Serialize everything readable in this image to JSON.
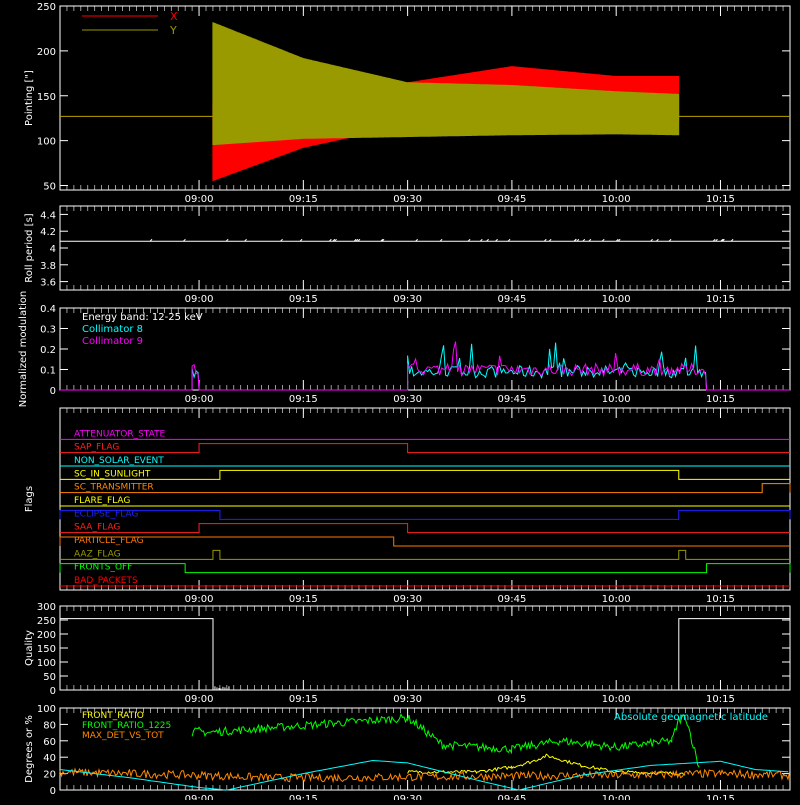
{
  "chart_data": [
    {
      "type": "line",
      "ylabel": "Pointing [\"]",
      "ylim": [
        45,
        250
      ],
      "y_ticks": [
        50,
        100,
        150,
        200,
        250
      ],
      "xlim": [
        "08:40",
        "10:25"
      ],
      "x_ticks": [
        "09:00",
        "09:15",
        "09:30",
        "09:45",
        "10:00",
        "10:15"
      ],
      "legend": "top-left",
      "baseline": 127,
      "active_range": [
        "09:02",
        "10:09"
      ],
      "series": [
        {
          "name": "X",
          "color": "#ff0000",
          "upper": {
            "x": [
              "09:02",
              "09:15",
              "09:30",
              "09:45",
              "10:00",
              "10:09"
            ],
            "y": [
              140,
              136,
              165,
              183,
              172,
              172
            ]
          },
          "lower": {
            "x": [
              "09:02",
              "09:15",
              "09:30",
              "09:45",
              "10:00",
              "10:09"
            ],
            "y": [
              55,
              92,
              117,
              118,
              120,
              122
            ]
          }
        },
        {
          "name": "Y",
          "color": "#999900",
          "upper": {
            "x": [
              "09:02",
              "09:15",
              "09:30",
              "09:45",
              "10:00",
              "10:09"
            ],
            "y": [
              232,
              192,
              165,
              162,
              155,
              152
            ]
          },
          "lower": {
            "x": [
              "09:02",
              "09:15",
              "09:30",
              "09:45",
              "10:00",
              "10:09"
            ],
            "y": [
              95,
              102,
              104,
              106,
              107,
              106
            ]
          }
        }
      ]
    },
    {
      "type": "line",
      "ylabel": "Roll period [s]",
      "ylim": [
        3.5,
        4.5
      ],
      "y_ticks": [
        3.6,
        3.8,
        4.0,
        4.2,
        4.4
      ],
      "xlim": [
        "08:40",
        "10:25"
      ],
      "x_ticks": [
        "09:00",
        "09:15",
        "09:30",
        "09:45",
        "10:00",
        "10:15"
      ],
      "series": [
        {
          "name": "",
          "color": "#ffffff",
          "x": [
            "08:40",
            "10:25"
          ],
          "y": [
            4.08,
            4.08
          ]
        }
      ]
    },
    {
      "type": "line",
      "ylabel": "Normalized modulation",
      "ylim": [
        0,
        0.4
      ],
      "y_ticks": [
        0.0,
        0.1,
        0.2,
        0.3,
        0.4
      ],
      "xlim": [
        "08:40",
        "10:25"
      ],
      "x_ticks": [
        "09:00",
        "09:15",
        "09:30",
        "09:45",
        "10:00",
        "10:15"
      ],
      "annotation": "Energy band: 12-25 keV",
      "legend": "top-left",
      "series": [
        {
          "name": "Collimator 8",
          "color": "#00ffff",
          "active": [
            [
              "08:59",
              "09:00"
            ],
            [
              "09:30",
              "10:13"
            ]
          ],
          "level": 0.08
        },
        {
          "name": "Collimator 9",
          "color": "#ff00ff",
          "active": [
            [
              "08:59",
              "09:00"
            ],
            [
              "09:30",
              "10:13"
            ]
          ],
          "level": 0.09
        }
      ]
    },
    {
      "type": "line",
      "ylabel": "Flags",
      "xlim": [
        "08:40",
        "10:25"
      ],
      "x_ticks": [
        "09:00",
        "09:15",
        "09:30",
        "09:45",
        "10:00",
        "10:15"
      ],
      "series": [
        {
          "name": "ATTENUATOR_STATE",
          "color": "#ff00ff",
          "high": []
        },
        {
          "name": "SAP_FLAG",
          "color": "#ff2020",
          "high": [
            [
              "09:00",
              "09:30"
            ]
          ]
        },
        {
          "name": "NON_SOLAR_EVENT",
          "color": "#00ffff",
          "high": []
        },
        {
          "name": "SC_IN_SUNLIGHT",
          "color": "#ffff00",
          "high": [
            [
              "09:03",
              "10:09"
            ]
          ]
        },
        {
          "name": "SC_TRANSMITTER",
          "color": "#ff8800",
          "high": [
            [
              "10:21",
              "10:25"
            ]
          ]
        },
        {
          "name": "FLARE_FLAG",
          "color": "#ffff00",
          "high": []
        },
        {
          "name": "ECLIPSE_FLAG",
          "color": "#2020ff",
          "high": [
            [
              "08:40",
              "09:03"
            ],
            [
              "10:09",
              "10:25"
            ]
          ]
        },
        {
          "name": "SAA_FLAG",
          "color": "#ff2020",
          "high": [
            [
              "09:00",
              "09:30"
            ]
          ]
        },
        {
          "name": "PARTICLE_FLAG",
          "color": "#ff7700",
          "high": [
            [
              "08:40",
              "09:28"
            ]
          ]
        },
        {
          "name": "AAZ_FLAG",
          "color": "#999900",
          "high": [
            [
              "09:02",
              "09:03"
            ],
            [
              "10:09",
              "10:10"
            ]
          ]
        },
        {
          "name": "FRONTS_OFF",
          "color": "#00ff00",
          "high": [
            [
              "08:40",
              "08:58"
            ],
            [
              "10:13",
              "10:25"
            ]
          ]
        },
        {
          "name": "BAD_PACKETS",
          "color": "#ff0000",
          "high": []
        }
      ]
    },
    {
      "type": "line",
      "ylabel": "Quality",
      "ylim": [
        0,
        300
      ],
      "y_ticks": [
        0,
        50,
        100,
        150,
        200,
        250,
        300
      ],
      "xlim": [
        "08:40",
        "10:25"
      ],
      "x_ticks": [
        "09:00",
        "09:15",
        "09:30",
        "09:45",
        "10:00",
        "10:15"
      ],
      "series": [
        {
          "name": "",
          "color": "#ffffff",
          "x": [
            "08:40",
            "09:02",
            "09:02",
            "09:04",
            "10:09",
            "10:09",
            "10:25"
          ],
          "y": [
            255,
            255,
            0,
            0,
            0,
            255,
            255
          ]
        }
      ]
    },
    {
      "type": "line",
      "ylabel": "Degrees or %",
      "ylim": [
        0,
        100
      ],
      "y_ticks": [
        0,
        20,
        40,
        60,
        80,
        100
      ],
      "xlim": [
        "08:40",
        "10:25"
      ],
      "x_ticks": [
        "09:00",
        "09:15",
        "09:30",
        "09:45",
        "10:00",
        "10:15"
      ],
      "legend": "top-left",
      "series": [
        {
          "name": "FRONT_RATIO",
          "color": "#ffff00",
          "x": [
            "09:30",
            "09:40",
            "09:45",
            "09:48",
            "09:50",
            "09:55",
            "10:00",
            "10:10"
          ],
          "y": [
            22,
            22,
            28,
            35,
            42,
            30,
            22,
            20
          ]
        },
        {
          "name": "FRONT_RATIO_1225",
          "color": "#00ff00",
          "x": [
            "08:59",
            "09:00",
            "09:01",
            "09:30",
            "09:31",
            "09:35",
            "09:45",
            "09:52",
            "10:00",
            "10:08",
            "10:09",
            "10:10",
            "10:12"
          ],
          "y": [
            70,
            72,
            70,
            88,
            82,
            55,
            50,
            60,
            52,
            60,
            85,
            90,
            25
          ]
        },
        {
          "name": "MAX_DET_VS_TOT",
          "color": "#ff8800",
          "x": [
            "08:40",
            "08:50",
            "09:00",
            "09:10",
            "09:20",
            "09:30",
            "09:45",
            "10:00",
            "10:15",
            "10:25"
          ],
          "y": [
            22,
            20,
            18,
            15,
            15,
            16,
            17,
            18,
            20,
            18
          ]
        },
        {
          "name": "Absolute geomagnetic latitude",
          "color": "#00ffff",
          "x": [
            "08:40",
            "08:50",
            "09:00",
            "09:04",
            "09:15",
            "09:25",
            "09:30",
            "09:40",
            "09:46",
            "09:55",
            "10:05",
            "10:15",
            "10:20",
            "10:25"
          ],
          "y": [
            25,
            15,
            3,
            0,
            20,
            36,
            33,
            12,
            0,
            18,
            30,
            35,
            25,
            22
          ]
        }
      ]
    }
  ]
}
